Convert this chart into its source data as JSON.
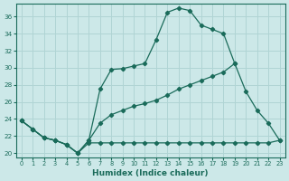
{
  "xlabel": "Humidex (Indice chaleur)",
  "background_color": "#cce8e8",
  "grid_color": "#b0d4d4",
  "line_color": "#1a6b5a",
  "xlim": [
    -0.5,
    23.5
  ],
  "ylim": [
    19.5,
    37.5
  ],
  "yticks": [
    20,
    22,
    24,
    26,
    28,
    30,
    32,
    34,
    36
  ],
  "xticks": [
    0,
    1,
    2,
    3,
    4,
    5,
    6,
    7,
    8,
    9,
    10,
    11,
    12,
    13,
    14,
    15,
    16,
    17,
    18,
    19,
    20,
    21,
    22,
    23
  ],
  "line1_x": [
    0,
    1,
    2,
    3,
    4,
    5,
    6,
    7,
    8,
    9,
    10,
    11,
    12,
    13,
    14,
    15,
    16,
    17,
    18,
    19
  ],
  "line1_y": [
    23.8,
    22.8,
    21.8,
    21.5,
    21.0,
    20.0,
    21.5,
    27.5,
    29.8,
    29.9,
    30.2,
    30.5,
    33.3,
    36.5,
    37.0,
    36.7,
    35.0,
    34.5,
    34.0,
    30.5
  ],
  "line2_x": [
    0,
    1,
    2,
    3,
    4,
    5,
    6,
    7,
    8,
    9,
    10,
    11,
    12,
    13,
    14,
    15,
    16,
    17,
    18,
    19,
    20,
    21,
    22,
    23
  ],
  "line2_y": [
    23.8,
    22.8,
    21.8,
    21.5,
    21.0,
    20.0,
    21.5,
    23.5,
    24.5,
    25.0,
    25.5,
    25.8,
    26.2,
    26.8,
    27.5,
    28.0,
    28.5,
    29.0,
    29.5,
    30.5,
    27.2,
    25.0,
    23.5,
    21.5
  ],
  "line3_x": [
    0,
    1,
    2,
    3,
    4,
    5,
    6,
    7,
    8,
    9,
    10,
    11,
    12,
    13,
    14,
    15,
    16,
    17,
    18,
    19,
    20,
    21,
    22,
    23
  ],
  "line3_y": [
    23.8,
    22.8,
    21.8,
    21.5,
    21.0,
    20.0,
    21.2,
    21.2,
    21.2,
    21.2,
    21.2,
    21.2,
    21.2,
    21.2,
    21.2,
    21.2,
    21.2,
    21.2,
    21.2,
    21.2,
    21.2,
    21.2,
    21.2,
    21.5
  ]
}
